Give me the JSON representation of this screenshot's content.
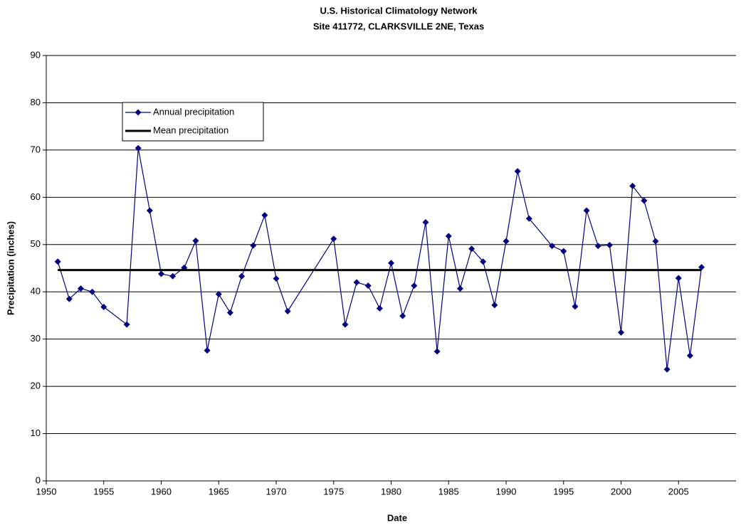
{
  "chart_data": {
    "type": "line",
    "title": "U.S. Historical Climatology Network",
    "subtitle": "Site 411772, CLARKSVILLE 2NE, Texas",
    "x_label": "Date",
    "y_label": "Precipitation (inches)",
    "xlim": [
      1950,
      2010
    ],
    "xticks": [
      1950,
      1955,
      1960,
      1965,
      1970,
      1975,
      1980,
      1985,
      1990,
      1995,
      2000,
      2005
    ],
    "ylim": [
      0,
      90
    ],
    "yticks": [
      0,
      10,
      20,
      30,
      40,
      50,
      60,
      70,
      80,
      90
    ],
    "grid": true,
    "legend": "upper left",
    "series": [
      {
        "name": "Annual precipitation",
        "color": "#000080",
        "marker": "diamond",
        "x": [
          1951,
          1952,
          1953,
          1954,
          1955,
          1957,
          1958,
          1959,
          1960,
          1961,
          1962,
          1963,
          1964,
          1965,
          1966,
          1967,
          1968,
          1969,
          1970,
          1971,
          1975,
          1976,
          1977,
          1978,
          1979,
          1980,
          1981,
          1982,
          1983,
          1984,
          1985,
          1986,
          1987,
          1988,
          1989,
          1990,
          1991,
          1992,
          1994,
          1995,
          1996,
          1997,
          1998,
          1999,
          2000,
          2001,
          2002,
          2003,
          2004,
          2005,
          2006,
          2007
        ],
        "values": [
          46.4,
          38.5,
          40.7,
          40.0,
          36.8,
          33.1,
          70.4,
          57.2,
          43.8,
          43.3,
          45.1,
          50.8,
          27.6,
          39.5,
          35.6,
          43.3,
          49.8,
          56.2,
          42.8,
          35.9,
          51.2,
          33.1,
          42.0,
          41.3,
          36.5,
          46.1,
          34.9,
          41.3,
          54.7,
          27.4,
          51.8,
          40.7,
          49.1,
          46.4,
          37.2,
          50.7,
          65.5,
          55.5,
          49.7,
          48.6,
          36.9,
          57.2,
          49.7,
          49.9,
          31.4,
          62.4,
          59.3,
          50.7,
          23.6,
          42.9,
          26.5,
          45.2
        ]
      },
      {
        "name": "Mean precipitation",
        "color": "#000000",
        "x": [
          1951,
          2007
        ],
        "values": [
          44.6,
          44.6
        ]
      }
    ]
  }
}
